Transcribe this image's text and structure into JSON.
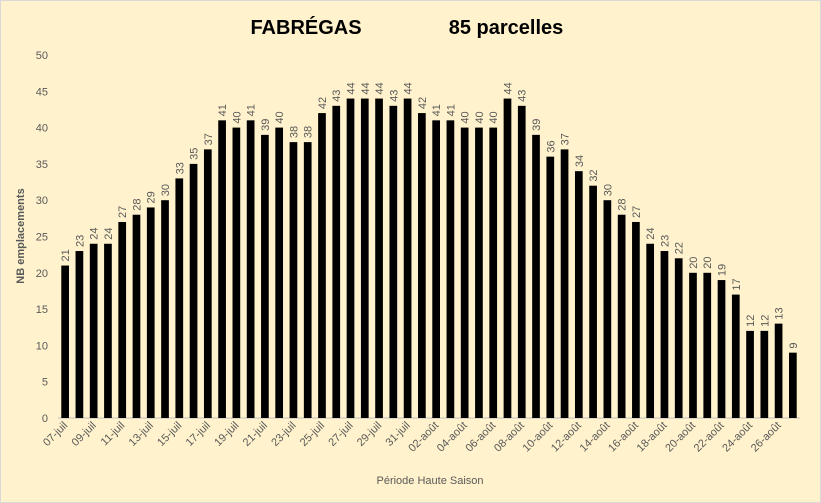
{
  "chart_data": {
    "type": "bar",
    "title": "FABRÉGAS",
    "subtitle": "85 parcelles",
    "x_label": "Période Haute Saison",
    "y_label": "NB emplacements",
    "categories": [
      "07-juil",
      null,
      "09-juil",
      null,
      "11-juil",
      null,
      "13-juil",
      null,
      "15-juil",
      null,
      "17-juil",
      null,
      "19-juil",
      null,
      "21-juil",
      null,
      "23-juil",
      null,
      "25-juil",
      null,
      "27-juil",
      null,
      "29-juil",
      null,
      "31-juil",
      null,
      "02-août",
      null,
      "04-août",
      null,
      "06-août",
      null,
      "08-août",
      null,
      "10-août",
      null,
      "12-août",
      null,
      "14-août",
      null,
      "16-août",
      null,
      "18-août",
      null,
      "20-août",
      null,
      "22-août",
      null,
      "24-août",
      null,
      "26-août",
      null
    ],
    "values": [
      21,
      23,
      24,
      24,
      27,
      28,
      29,
      30,
      33,
      35,
      37,
      41,
      40,
      41,
      39,
      40,
      38,
      38,
      42,
      43,
      44,
      44,
      44,
      43,
      44,
      42,
      41,
      41,
      40,
      40,
      40,
      44,
      43,
      39,
      36,
      37,
      34,
      32,
      30,
      28,
      27,
      24,
      23,
      22,
      20,
      20,
      19,
      17,
      12,
      12,
      13,
      9
    ],
    "color": "#000000",
    "ylim": [
      0,
      50
    ],
    "yticks": [
      0,
      5,
      10,
      15,
      20,
      25,
      30,
      35,
      40,
      45,
      50
    ],
    "grid": false
  }
}
